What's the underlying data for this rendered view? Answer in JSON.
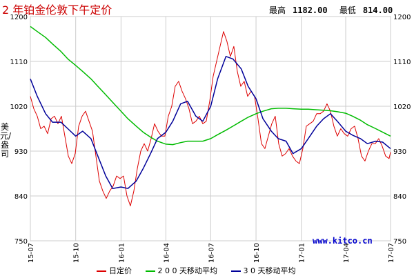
{
  "header": {
    "title": "2 年铂金伦敦下午定价",
    "high_label": "最高",
    "high_value": "1182.00",
    "low_label": "最低",
    "low_value": "814.00"
  },
  "watermark": "www.kitco.cn",
  "colors": {
    "daily": "#dd0000",
    "ma200": "#00bb00",
    "ma30": "#000099",
    "grid": "#cccccc"
  },
  "chart_data": {
    "type": "line",
    "ylabel": "美元/盎司",
    "ylim": [
      750,
      1200
    ],
    "yticks": [
      750,
      840,
      930,
      1020,
      1110,
      1200
    ],
    "xlim": [
      "2015-07-01",
      "2017-07-01"
    ],
    "xticks": [
      {
        "label": "15-07",
        "date": "2015-07-01"
      },
      {
        "label": "15-10",
        "date": "2015-10-01"
      },
      {
        "label": "16-01",
        "date": "2016-01-01"
      },
      {
        "label": "16-04",
        "date": "2016-04-01"
      },
      {
        "label": "16-07",
        "date": "2016-07-01"
      },
      {
        "label": "16-10",
        "date": "2016-10-01"
      },
      {
        "label": "17-01",
        "date": "2017-01-01"
      },
      {
        "label": "17-04",
        "date": "2017-04-01"
      },
      {
        "label": "17-07",
        "date": "2017-07-01"
      }
    ],
    "grid": true,
    "legend_position": "bottom",
    "series": [
      {
        "name": "日定价",
        "color_key": "daily",
        "points": [
          [
            "2015-07-01",
            1040
          ],
          [
            "2015-07-08",
            1015
          ],
          [
            "2015-07-15",
            1000
          ],
          [
            "2015-07-22",
            975
          ],
          [
            "2015-07-29",
            980
          ],
          [
            "2015-08-05",
            965
          ],
          [
            "2015-08-12",
            995
          ],
          [
            "2015-08-19",
            1000
          ],
          [
            "2015-08-26",
            985
          ],
          [
            "2015-09-02",
            1000
          ],
          [
            "2015-09-09",
            960
          ],
          [
            "2015-09-16",
            920
          ],
          [
            "2015-09-23",
            905
          ],
          [
            "2015-09-30",
            925
          ],
          [
            "2015-10-07",
            980
          ],
          [
            "2015-10-14",
            1000
          ],
          [
            "2015-10-21",
            1010
          ],
          [
            "2015-10-28",
            990
          ],
          [
            "2015-11-04",
            970
          ],
          [
            "2015-11-11",
            920
          ],
          [
            "2015-11-18",
            870
          ],
          [
            "2015-11-25",
            850
          ],
          [
            "2015-12-02",
            835
          ],
          [
            "2015-12-09",
            850
          ],
          [
            "2015-12-16",
            860
          ],
          [
            "2015-12-23",
            880
          ],
          [
            "2015-12-30",
            875
          ],
          [
            "2016-01-06",
            880
          ],
          [
            "2016-01-13",
            840
          ],
          [
            "2016-01-20",
            820
          ],
          [
            "2016-01-27",
            850
          ],
          [
            "2016-02-03",
            895
          ],
          [
            "2016-02-10",
            930
          ],
          [
            "2016-02-17",
            945
          ],
          [
            "2016-02-24",
            930
          ],
          [
            "2016-03-02",
            955
          ],
          [
            "2016-03-09",
            985
          ],
          [
            "2016-03-16",
            970
          ],
          [
            "2016-03-23",
            960
          ],
          [
            "2016-03-30",
            960
          ],
          [
            "2016-04-06",
            1000
          ],
          [
            "2016-04-13",
            1020
          ],
          [
            "2016-04-20",
            1060
          ],
          [
            "2016-04-27",
            1070
          ],
          [
            "2016-05-04",
            1050
          ],
          [
            "2016-05-11",
            1035
          ],
          [
            "2016-05-18",
            1015
          ],
          [
            "2016-05-25",
            985
          ],
          [
            "2016-06-01",
            990
          ],
          [
            "2016-06-08",
            1000
          ],
          [
            "2016-06-15",
            985
          ],
          [
            "2016-06-22",
            990
          ],
          [
            "2016-06-29",
            1030
          ],
          [
            "2016-07-06",
            1080
          ],
          [
            "2016-07-13",
            1110
          ],
          [
            "2016-07-20",
            1140
          ],
          [
            "2016-07-27",
            1170
          ],
          [
            "2016-08-03",
            1150
          ],
          [
            "2016-08-10",
            1120
          ],
          [
            "2016-08-17",
            1140
          ],
          [
            "2016-08-24",
            1090
          ],
          [
            "2016-08-31",
            1060
          ],
          [
            "2016-09-07",
            1070
          ],
          [
            "2016-09-14",
            1040
          ],
          [
            "2016-09-21",
            1050
          ],
          [
            "2016-09-28",
            1040
          ],
          [
            "2016-10-05",
            995
          ],
          [
            "2016-10-12",
            945
          ],
          [
            "2016-10-19",
            935
          ],
          [
            "2016-10-26",
            960
          ],
          [
            "2016-11-02",
            985
          ],
          [
            "2016-11-09",
            1000
          ],
          [
            "2016-11-16",
            945
          ],
          [
            "2016-11-23",
            920
          ],
          [
            "2016-11-30",
            925
          ],
          [
            "2016-12-07",
            935
          ],
          [
            "2016-12-14",
            920
          ],
          [
            "2016-12-21",
            910
          ],
          [
            "2016-12-28",
            905
          ],
          [
            "2017-01-04",
            935
          ],
          [
            "2017-01-11",
            980
          ],
          [
            "2017-01-18",
            985
          ],
          [
            "2017-01-25",
            990
          ],
          [
            "2017-02-01",
            1005
          ],
          [
            "2017-02-08",
            1005
          ],
          [
            "2017-02-15",
            1010
          ],
          [
            "2017-02-22",
            1025
          ],
          [
            "2017-03-01",
            1010
          ],
          [
            "2017-03-08",
            980
          ],
          [
            "2017-03-15",
            960
          ],
          [
            "2017-03-22",
            975
          ],
          [
            "2017-03-29",
            965
          ],
          [
            "2017-04-05",
            960
          ],
          [
            "2017-04-12",
            975
          ],
          [
            "2017-04-19",
            980
          ],
          [
            "2017-04-26",
            955
          ],
          [
            "2017-05-03",
            920
          ],
          [
            "2017-05-10",
            910
          ],
          [
            "2017-05-17",
            930
          ],
          [
            "2017-05-24",
            945
          ],
          [
            "2017-05-31",
            945
          ],
          [
            "2017-06-07",
            955
          ],
          [
            "2017-06-14",
            940
          ],
          [
            "2017-06-21",
            920
          ],
          [
            "2017-06-28",
            915
          ],
          [
            "2017-07-01",
            928
          ]
        ]
      },
      {
        "name": "2 0 0 天移动平均",
        "color_key": "ma200",
        "points": [
          [
            "2015-07-01",
            1180
          ],
          [
            "2015-07-15",
            1170
          ],
          [
            "2015-08-01",
            1158
          ],
          [
            "2015-08-15",
            1145
          ],
          [
            "2015-09-01",
            1130
          ],
          [
            "2015-09-15",
            1115
          ],
          [
            "2015-10-01",
            1102
          ],
          [
            "2015-10-15",
            1090
          ],
          [
            "2015-11-01",
            1075
          ],
          [
            "2015-11-15",
            1060
          ],
          [
            "2015-12-01",
            1043
          ],
          [
            "2015-12-15",
            1028
          ],
          [
            "2016-01-01",
            1010
          ],
          [
            "2016-01-15",
            995
          ],
          [
            "2016-02-01",
            980
          ],
          [
            "2016-02-15",
            968
          ],
          [
            "2016-03-01",
            958
          ],
          [
            "2016-03-15",
            950
          ],
          [
            "2016-04-01",
            944
          ],
          [
            "2016-04-15",
            943
          ],
          [
            "2016-05-01",
            947
          ],
          [
            "2016-05-15",
            950
          ],
          [
            "2016-06-01",
            950
          ],
          [
            "2016-06-15",
            950
          ],
          [
            "2016-07-01",
            955
          ],
          [
            "2016-07-15",
            963
          ],
          [
            "2016-08-01",
            972
          ],
          [
            "2016-08-15",
            980
          ],
          [
            "2016-09-01",
            990
          ],
          [
            "2016-09-15",
            998
          ],
          [
            "2016-10-01",
            1005
          ],
          [
            "2016-10-15",
            1010
          ],
          [
            "2016-11-01",
            1015
          ],
          [
            "2016-11-15",
            1016
          ],
          [
            "2016-12-01",
            1016
          ],
          [
            "2016-12-15",
            1015
          ],
          [
            "2017-01-01",
            1014
          ],
          [
            "2017-01-15",
            1014
          ],
          [
            "2017-02-01",
            1013
          ],
          [
            "2017-02-15",
            1012
          ],
          [
            "2017-03-01",
            1011
          ],
          [
            "2017-03-15",
            1009
          ],
          [
            "2017-04-01",
            1006
          ],
          [
            "2017-04-15",
            1000
          ],
          [
            "2017-05-01",
            992
          ],
          [
            "2017-05-15",
            983
          ],
          [
            "2017-06-01",
            975
          ],
          [
            "2017-06-15",
            968
          ],
          [
            "2017-07-01",
            960
          ]
        ]
      },
      {
        "name": "3 0 天移动平均",
        "color_key": "ma30",
        "points": [
          [
            "2015-07-01",
            1075
          ],
          [
            "2015-07-15",
            1040
          ],
          [
            "2015-08-01",
            1005
          ],
          [
            "2015-08-15",
            988
          ],
          [
            "2015-09-01",
            988
          ],
          [
            "2015-09-15",
            975
          ],
          [
            "2015-10-01",
            960
          ],
          [
            "2015-10-15",
            970
          ],
          [
            "2015-11-01",
            955
          ],
          [
            "2015-11-15",
            920
          ],
          [
            "2015-12-01",
            880
          ],
          [
            "2015-12-15",
            855
          ],
          [
            "2016-01-01",
            858
          ],
          [
            "2016-01-15",
            855
          ],
          [
            "2016-02-01",
            870
          ],
          [
            "2016-02-15",
            895
          ],
          [
            "2016-03-01",
            925
          ],
          [
            "2016-03-15",
            955
          ],
          [
            "2016-04-01",
            968
          ],
          [
            "2016-04-15",
            990
          ],
          [
            "2016-05-01",
            1025
          ],
          [
            "2016-05-15",
            1030
          ],
          [
            "2016-06-01",
            1000
          ],
          [
            "2016-06-15",
            990
          ],
          [
            "2016-07-01",
            1020
          ],
          [
            "2016-07-15",
            1075
          ],
          [
            "2016-08-01",
            1120
          ],
          [
            "2016-08-15",
            1115
          ],
          [
            "2016-09-01",
            1095
          ],
          [
            "2016-09-15",
            1060
          ],
          [
            "2016-10-01",
            1035
          ],
          [
            "2016-10-15",
            995
          ],
          [
            "2016-11-01",
            970
          ],
          [
            "2016-11-15",
            955
          ],
          [
            "2016-12-01",
            950
          ],
          [
            "2016-12-15",
            925
          ],
          [
            "2017-01-01",
            935
          ],
          [
            "2017-01-15",
            955
          ],
          [
            "2017-02-01",
            980
          ],
          [
            "2017-02-15",
            995
          ],
          [
            "2017-03-01",
            1005
          ],
          [
            "2017-03-15",
            990
          ],
          [
            "2017-04-01",
            970
          ],
          [
            "2017-04-15",
            962
          ],
          [
            "2017-05-01",
            955
          ],
          [
            "2017-05-15",
            945
          ],
          [
            "2017-06-01",
            950
          ],
          [
            "2017-06-15",
            948
          ],
          [
            "2017-07-01",
            935
          ]
        ]
      }
    ]
  }
}
